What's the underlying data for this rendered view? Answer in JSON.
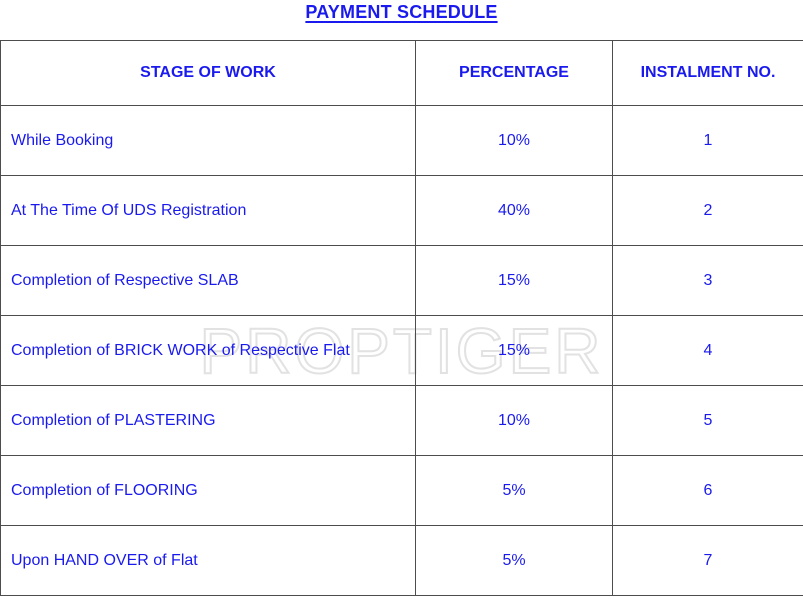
{
  "page": {
    "title": "PAYMENT SCHEDULE",
    "watermark": "PROPTIGER"
  },
  "colors": {
    "text_blue": "#1a1aee",
    "border_gray": "#4d4d4d",
    "watermark_gray": "#e2e2e2",
    "background": "#ffffff"
  },
  "table": {
    "headers": [
      "STAGE OF WORK",
      "PERCENTAGE",
      "INSTALMENT NO."
    ],
    "rows": [
      {
        "stage": "While Booking",
        "percentage": "10%",
        "instalment": "1"
      },
      {
        "stage": "At The Time Of UDS Registration",
        "percentage": "40%",
        "instalment": "2"
      },
      {
        "stage": "Completion of Respective SLAB",
        "percentage": "15%",
        "instalment": "3"
      },
      {
        "stage": "Completion of BRICK WORK of Respective Flat",
        "percentage": "15%",
        "instalment": "4"
      },
      {
        "stage": "Completion of PLASTERING",
        "percentage": "10%",
        "instalment": "5"
      },
      {
        "stage": "Completion of FLOORING",
        "percentage": "5%",
        "instalment": "6"
      },
      {
        "stage": "Upon HAND OVER of Flat",
        "percentage": "5%",
        "instalment": "7"
      }
    ]
  }
}
